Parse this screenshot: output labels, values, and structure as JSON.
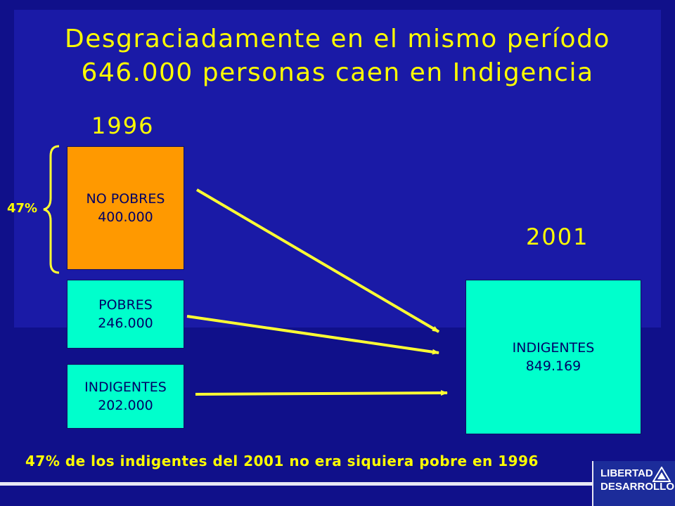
{
  "title": {
    "line1": "Desgraciadamente en el mismo período",
    "line2": "646.000 personas caen en Indigencia"
  },
  "year_1996": "1996",
  "year_2001": "2001",
  "bracket_label": "47%",
  "boxes_1996": [
    {
      "label": "NO POBRES",
      "value": "400.000"
    },
    {
      "label": "POBRES",
      "value": "246.000"
    },
    {
      "label": "INDIGENTES",
      "value": "202.000"
    }
  ],
  "box_2001": {
    "label": "INDIGENTES",
    "value": "849.169"
  },
  "footnote": "47% de los indigentes del 2001 no era siquiera pobre en 1996",
  "logo": {
    "line1": "LIBERTAD",
    "line2": "DESARROLLO"
  },
  "colors": {
    "background": "#10108a",
    "title": "#ffff00",
    "no_pobres": "#ff9900",
    "pobres": "#00ffcc",
    "arrow": "#ffff33"
  }
}
